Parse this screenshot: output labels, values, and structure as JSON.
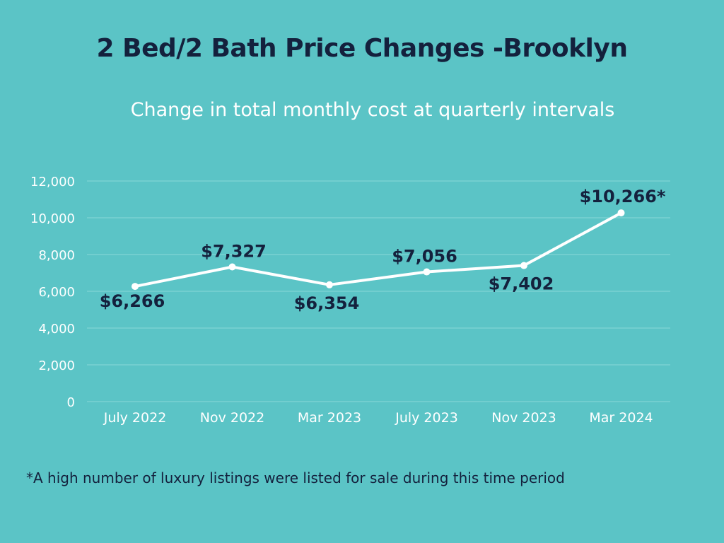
{
  "colors": {
    "background": "#5bc4c6",
    "title": "#14213d",
    "line": "#ffffff",
    "grid": "#8ad8d8",
    "label": "#14213d"
  },
  "chart_data": {
    "type": "line",
    "title": "2 Bed/2 Bath Price Changes -Brooklyn",
    "subtitle": "Change in total monthly cost at quarterly intervals",
    "xlabel": "",
    "ylabel": "",
    "categories": [
      "July 2022",
      "Nov 2022",
      "Mar 2023",
      "July 2023",
      "Nov 2023",
      "Mar 2024"
    ],
    "values": [
      6266,
      7327,
      6354,
      7056,
      7402,
      10266
    ],
    "data_labels": [
      "$6,266",
      "$7,327",
      "$6,354",
      "$7,056",
      "$7,402",
      "$10,266*"
    ],
    "ylim": [
      0,
      12000
    ],
    "yticks": [
      0,
      2000,
      4000,
      6000,
      8000,
      10000,
      12000
    ],
    "ytick_labels": [
      "0",
      "2,000",
      "4,000",
      "6,000",
      "8,000",
      "10,000",
      "12,000"
    ],
    "grid": true,
    "footnote": "*A high number of luxury listings were listed for sale during this time period"
  }
}
